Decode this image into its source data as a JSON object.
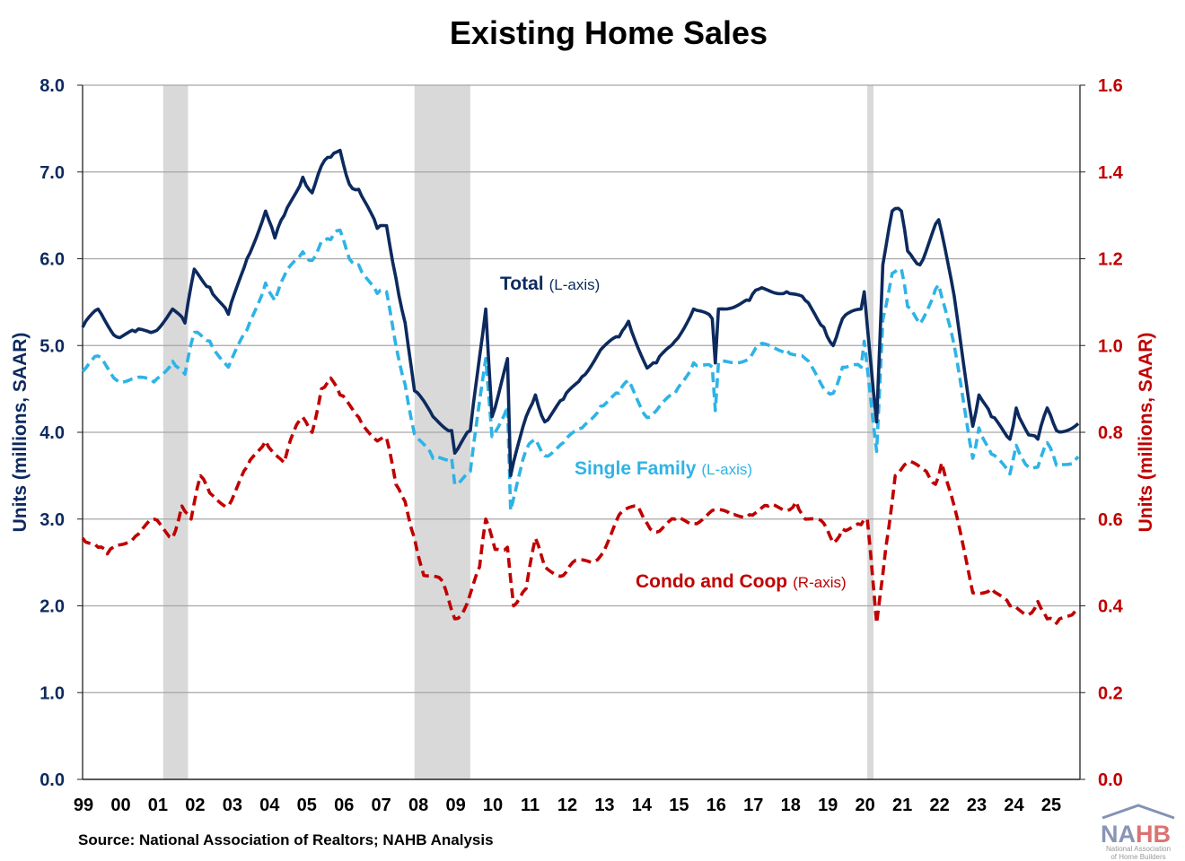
{
  "chart_data": {
    "type": "line",
    "title": "Existing Home Sales",
    "ylabel_left": "Units (millions, SAAR)",
    "ylabel_right": "Units (millions, SAAR)",
    "ylim_left": [
      0,
      8
    ],
    "ylim_right": [
      0,
      1.6
    ],
    "yticks_left": [
      "0.0",
      "1.0",
      "2.0",
      "3.0",
      "4.0",
      "5.0",
      "6.0",
      "7.0",
      "8.0"
    ],
    "yticks_right": [
      "0.0",
      "0.2",
      "0.4",
      "0.6",
      "0.8",
      "1.0",
      "1.2",
      "1.4",
      "1.6"
    ],
    "xticks": [
      "99",
      "00",
      "01",
      "02",
      "03",
      "04",
      "05",
      "06",
      "07",
      "08",
      "09",
      "10",
      "11",
      "12",
      "13",
      "14",
      "15",
      "16",
      "17",
      "18",
      "19",
      "20",
      "21",
      "22",
      "23",
      "24",
      "25"
    ],
    "grid": "horizontal",
    "source": "Source: National Association of Realtors; NAHB Analysis",
    "recessions": [
      [
        "2001-03",
        "2001-11"
      ],
      [
        "2007-12",
        "2009-06"
      ],
      [
        "2020-02",
        "2020-04"
      ]
    ],
    "colors": {
      "total": "#0d2a5e",
      "single_family": "#2eb3e6",
      "condo": "#c00000",
      "recession": "#d9d9d9",
      "grid": "#a6a6a6"
    },
    "series": [
      {
        "name": "Total",
        "axis_note": "(L-axis)",
        "axis": "left",
        "style": "solid",
        "points": [
          [
            "1999-01",
            5.21
          ],
          [
            "1999-06",
            5.42
          ],
          [
            "1999-12",
            5.1
          ],
          [
            "2000-06",
            5.16
          ],
          [
            "2000-12",
            5.16
          ],
          [
            "2001-06",
            5.42
          ],
          [
            "2001-10",
            5.26
          ],
          [
            "2002-01",
            5.88
          ],
          [
            "2002-06",
            5.67
          ],
          [
            "2002-12",
            5.36
          ],
          [
            "2003-06",
            6.0
          ],
          [
            "2003-12",
            6.55
          ],
          [
            "2004-03",
            6.24
          ],
          [
            "2004-06",
            6.5
          ],
          [
            "2004-12",
            6.94
          ],
          [
            "2005-03",
            6.76
          ],
          [
            "2005-06",
            7.07
          ],
          [
            "2005-09",
            7.17
          ],
          [
            "2005-12",
            7.25
          ],
          [
            "2006-03",
            6.86
          ],
          [
            "2006-06",
            6.8
          ],
          [
            "2006-12",
            6.35
          ],
          [
            "2007-03",
            6.38
          ],
          [
            "2007-06",
            5.78
          ],
          [
            "2007-09",
            5.26
          ],
          [
            "2007-12",
            4.48
          ],
          [
            "2008-06",
            4.18
          ],
          [
            "2008-12",
            4.02
          ],
          [
            "2009-01",
            3.76
          ],
          [
            "2009-06",
            4.02
          ],
          [
            "2009-11",
            5.42
          ],
          [
            "2010-01",
            4.18
          ],
          [
            "2010-06",
            4.85
          ],
          [
            "2010-07",
            3.5
          ],
          [
            "2010-12",
            4.18
          ],
          [
            "2011-03",
            4.43
          ],
          [
            "2011-06",
            4.12
          ],
          [
            "2011-12",
            4.38
          ],
          [
            "2012-06",
            4.64
          ],
          [
            "2012-12",
            4.95
          ],
          [
            "2013-06",
            5.1
          ],
          [
            "2013-09",
            5.28
          ],
          [
            "2014-03",
            4.74
          ],
          [
            "2014-06",
            4.8
          ],
          [
            "2014-12",
            5.05
          ],
          [
            "2015-06",
            5.42
          ],
          [
            "2015-12",
            5.31
          ],
          [
            "2016-01",
            4.8
          ],
          [
            "2016-02",
            5.42
          ],
          [
            "2016-12",
            5.52
          ],
          [
            "2017-03",
            5.65
          ],
          [
            "2017-12",
            5.62
          ],
          [
            "2018-06",
            5.52
          ],
          [
            "2018-12",
            5.21
          ],
          [
            "2019-03",
            5.0
          ],
          [
            "2019-06",
            5.31
          ],
          [
            "2019-12",
            5.42
          ],
          [
            "2020-01",
            5.62
          ],
          [
            "2020-05",
            4.12
          ],
          [
            "2020-07",
            5.93
          ],
          [
            "2020-10",
            6.55
          ],
          [
            "2021-01",
            6.55
          ],
          [
            "2021-03",
            6.09
          ],
          [
            "2021-07",
            5.93
          ],
          [
            "2021-12",
            6.4
          ],
          [
            "2022-01",
            6.45
          ],
          [
            "2022-06",
            5.57
          ],
          [
            "2022-12",
            4.07
          ],
          [
            "2023-02",
            4.43
          ],
          [
            "2023-06",
            4.18
          ],
          [
            "2023-12",
            3.92
          ],
          [
            "2024-02",
            4.28
          ],
          [
            "2024-06",
            3.97
          ],
          [
            "2024-09",
            3.92
          ],
          [
            "2024-12",
            4.28
          ],
          [
            "2025-03",
            4.02
          ],
          [
            "2025-09",
            4.07
          ],
          [
            "2025-10",
            4.1
          ]
        ]
      },
      {
        "name": "Single Family",
        "axis_note": "(L-axis)",
        "axis": "left",
        "style": "dashed",
        "points": [
          [
            "1999-01",
            4.7
          ],
          [
            "1999-06",
            4.88
          ],
          [
            "1999-12",
            4.6
          ],
          [
            "2000-06",
            4.62
          ],
          [
            "2000-12",
            4.58
          ],
          [
            "2001-06",
            4.82
          ],
          [
            "2001-10",
            4.67
          ],
          [
            "2002-01",
            5.15
          ],
          [
            "2002-06",
            5.05
          ],
          [
            "2002-12",
            4.75
          ],
          [
            "2003-06",
            5.18
          ],
          [
            "2003-12",
            5.72
          ],
          [
            "2004-03",
            5.52
          ],
          [
            "2004-06",
            5.8
          ],
          [
            "2004-12",
            6.08
          ],
          [
            "2005-03",
            5.98
          ],
          [
            "2005-06",
            6.2
          ],
          [
            "2005-09",
            6.22
          ],
          [
            "2005-12",
            6.33
          ],
          [
            "2006-03",
            6.0
          ],
          [
            "2006-06",
            5.93
          ],
          [
            "2006-12",
            5.6
          ],
          [
            "2007-03",
            5.62
          ],
          [
            "2007-06",
            5.0
          ],
          [
            "2007-09",
            4.55
          ],
          [
            "2007-12",
            3.98
          ],
          [
            "2008-06",
            3.7
          ],
          [
            "2008-12",
            3.7
          ],
          [
            "2009-01",
            3.4
          ],
          [
            "2009-06",
            3.55
          ],
          [
            "2009-11",
            4.85
          ],
          [
            "2010-01",
            3.95
          ],
          [
            "2010-06",
            4.3
          ],
          [
            "2010-07",
            3.1
          ],
          [
            "2010-12",
            3.8
          ],
          [
            "2011-03",
            3.92
          ],
          [
            "2011-06",
            3.73
          ],
          [
            "2011-12",
            3.88
          ],
          [
            "2012-06",
            4.05
          ],
          [
            "2012-12",
            4.3
          ],
          [
            "2013-06",
            4.45
          ],
          [
            "2013-09",
            4.6
          ],
          [
            "2014-03",
            4.17
          ],
          [
            "2014-06",
            4.25
          ],
          [
            "2014-12",
            4.45
          ],
          [
            "2015-06",
            4.8
          ],
          [
            "2015-12",
            4.75
          ],
          [
            "2016-01",
            4.25
          ],
          [
            "2016-02",
            4.8
          ],
          [
            "2016-12",
            4.85
          ],
          [
            "2017-03",
            5.0
          ],
          [
            "2017-12",
            4.95
          ],
          [
            "2018-06",
            4.85
          ],
          [
            "2018-12",
            4.5
          ],
          [
            "2019-03",
            4.45
          ],
          [
            "2019-06",
            4.75
          ],
          [
            "2019-12",
            4.75
          ],
          [
            "2020-01",
            5.05
          ],
          [
            "2020-05",
            3.78
          ],
          [
            "2020-07",
            5.3
          ],
          [
            "2020-10",
            5.83
          ],
          [
            "2021-01",
            5.88
          ],
          [
            "2021-03",
            5.45
          ],
          [
            "2021-07",
            5.25
          ],
          [
            "2021-12",
            5.65
          ],
          [
            "2022-01",
            5.7
          ],
          [
            "2022-06",
            5.0
          ],
          [
            "2022-12",
            3.7
          ],
          [
            "2023-02",
            4.05
          ],
          [
            "2023-06",
            3.75
          ],
          [
            "2023-12",
            3.52
          ],
          [
            "2024-02",
            3.85
          ],
          [
            "2024-06",
            3.6
          ],
          [
            "2024-09",
            3.6
          ],
          [
            "2024-12",
            3.88
          ],
          [
            "2025-03",
            3.62
          ],
          [
            "2025-09",
            3.68
          ],
          [
            "2025-10",
            3.72
          ]
        ]
      },
      {
        "name": "Condo and Coop",
        "axis_note": "(R-axis)",
        "axis": "right",
        "style": "dashed",
        "points": [
          [
            "1999-01",
            0.556
          ],
          [
            "1999-06",
            0.535
          ],
          [
            "1999-09",
            0.52
          ],
          [
            "1999-12",
            0.54
          ],
          [
            "2000-06",
            0.56
          ],
          [
            "2000-12",
            0.6
          ],
          [
            "2001-06",
            0.556
          ],
          [
            "2001-09",
            0.63
          ],
          [
            "2001-12",
            0.6
          ],
          [
            "2002-03",
            0.7
          ],
          [
            "2002-06",
            0.66
          ],
          [
            "2002-12",
            0.63
          ],
          [
            "2003-06",
            0.72
          ],
          [
            "2003-12",
            0.78
          ],
          [
            "2004-06",
            0.73
          ],
          [
            "2004-09",
            0.8
          ],
          [
            "2004-12",
            0.835
          ],
          [
            "2005-03",
            0.8
          ],
          [
            "2005-06",
            0.9
          ],
          [
            "2005-09",
            0.925
          ],
          [
            "2005-12",
            0.886
          ],
          [
            "2006-06",
            0.835
          ],
          [
            "2006-12",
            0.78
          ],
          [
            "2007-03",
            0.787
          ],
          [
            "2007-06",
            0.68
          ],
          [
            "2007-09",
            0.64
          ],
          [
            "2007-12",
            0.556
          ],
          [
            "2008-03",
            0.47
          ],
          [
            "2008-09",
            0.457
          ],
          [
            "2009-01",
            0.37
          ],
          [
            "2009-04",
            0.39
          ],
          [
            "2009-09",
            0.49
          ],
          [
            "2009-11",
            0.6
          ],
          [
            "2010-02",
            0.53
          ],
          [
            "2010-06",
            0.535
          ],
          [
            "2010-08",
            0.4
          ],
          [
            "2010-12",
            0.44
          ],
          [
            "2011-03",
            0.556
          ],
          [
            "2011-06",
            0.49
          ],
          [
            "2011-12",
            0.47
          ],
          [
            "2012-03",
            0.5
          ],
          [
            "2012-09",
            0.5
          ],
          [
            "2012-12",
            0.515
          ],
          [
            "2013-06",
            0.61
          ],
          [
            "2013-12",
            0.63
          ],
          [
            "2014-03",
            0.59
          ],
          [
            "2014-06",
            0.57
          ],
          [
            "2014-12",
            0.6
          ],
          [
            "2015-06",
            0.59
          ],
          [
            "2015-12",
            0.62
          ],
          [
            "2016-06",
            0.61
          ],
          [
            "2016-12",
            0.61
          ],
          [
            "2017-06",
            0.63
          ],
          [
            "2017-12",
            0.62
          ],
          [
            "2018-03",
            0.64
          ],
          [
            "2018-06",
            0.6
          ],
          [
            "2018-12",
            0.59
          ],
          [
            "2019-03",
            0.545
          ],
          [
            "2019-06",
            0.577
          ],
          [
            "2019-12",
            0.587
          ],
          [
            "2020-02",
            0.6
          ],
          [
            "2020-05",
            0.36
          ],
          [
            "2020-08",
            0.535
          ],
          [
            "2020-11",
            0.7
          ],
          [
            "2021-03",
            0.73
          ],
          [
            "2021-09",
            0.71
          ],
          [
            "2021-12",
            0.68
          ],
          [
            "2022-02",
            0.73
          ],
          [
            "2022-06",
            0.63
          ],
          [
            "2022-12",
            0.43
          ],
          [
            "2023-06",
            0.44
          ],
          [
            "2023-12",
            0.4
          ],
          [
            "2024-06",
            0.38
          ],
          [
            "2024-09",
            0.41
          ],
          [
            "2024-12",
            0.37
          ],
          [
            "2025-03",
            0.36
          ],
          [
            "2025-09",
            0.387
          ]
        ]
      }
    ]
  },
  "logo": {
    "text": "NAHB",
    "subtitle": "National Association of Home Builders"
  }
}
